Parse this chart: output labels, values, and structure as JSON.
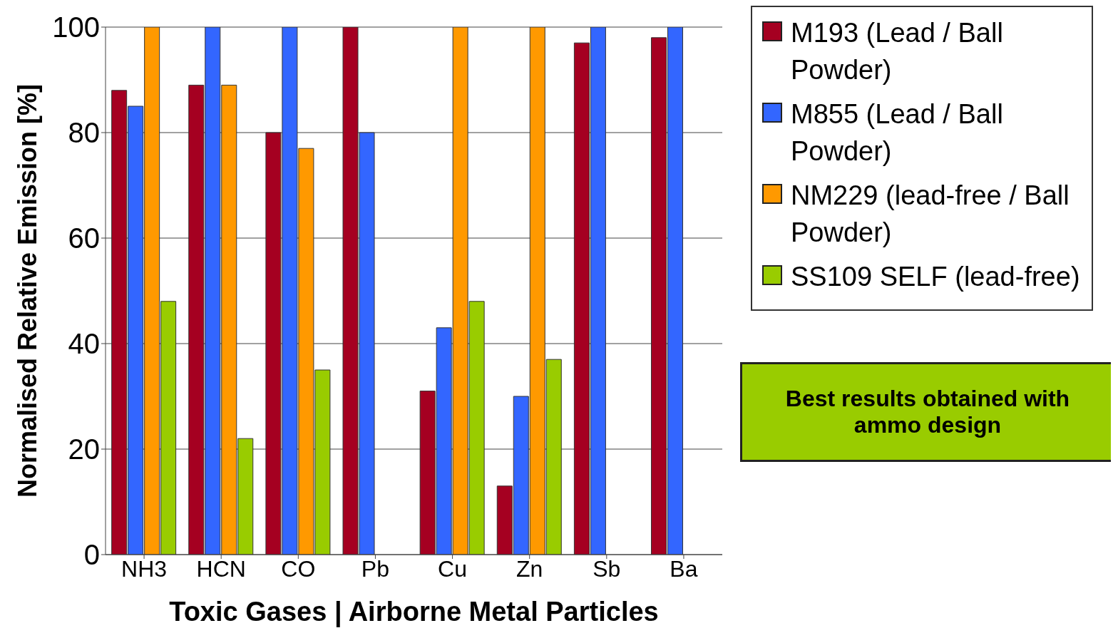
{
  "chart_data": {
    "type": "bar",
    "ylabel": "Normalised Relative Emission  [%]",
    "xlabel": "Toxic Gases   |  Airborne Metal Particles",
    "categories": [
      "NH3",
      "HCN",
      "CO",
      "Pb",
      "Cu",
      "Zn",
      "Sb",
      "Ba"
    ],
    "series": [
      {
        "name": "M193 (Lead / Ball Powder)",
        "color": "#a50021",
        "values": [
          88,
          89,
          80,
          100,
          31,
          13,
          97,
          98
        ]
      },
      {
        "name": "M855 (Lead / Ball Powder)",
        "color": "#3366ff",
        "values": [
          85,
          100,
          100,
          80,
          43,
          30,
          100,
          100
        ]
      },
      {
        "name": "NM229 (lead-free / Ball Powder)",
        "color": "#ff9900",
        "values": [
          100,
          89,
          77,
          0,
          100,
          100,
          0,
          0
        ]
      },
      {
        "name": "SS109 SELF (lead-free)",
        "color": "#99cc00",
        "values": [
          48,
          22,
          35,
          0,
          48,
          37,
          0,
          0
        ]
      }
    ],
    "ylim": [
      0,
      100
    ],
    "yticks": [
      0,
      20,
      40,
      60,
      80,
      100
    ],
    "grid": "y",
    "legend": "top right",
    "annotations": [
      "Best results obtained with ammo design"
    ]
  }
}
